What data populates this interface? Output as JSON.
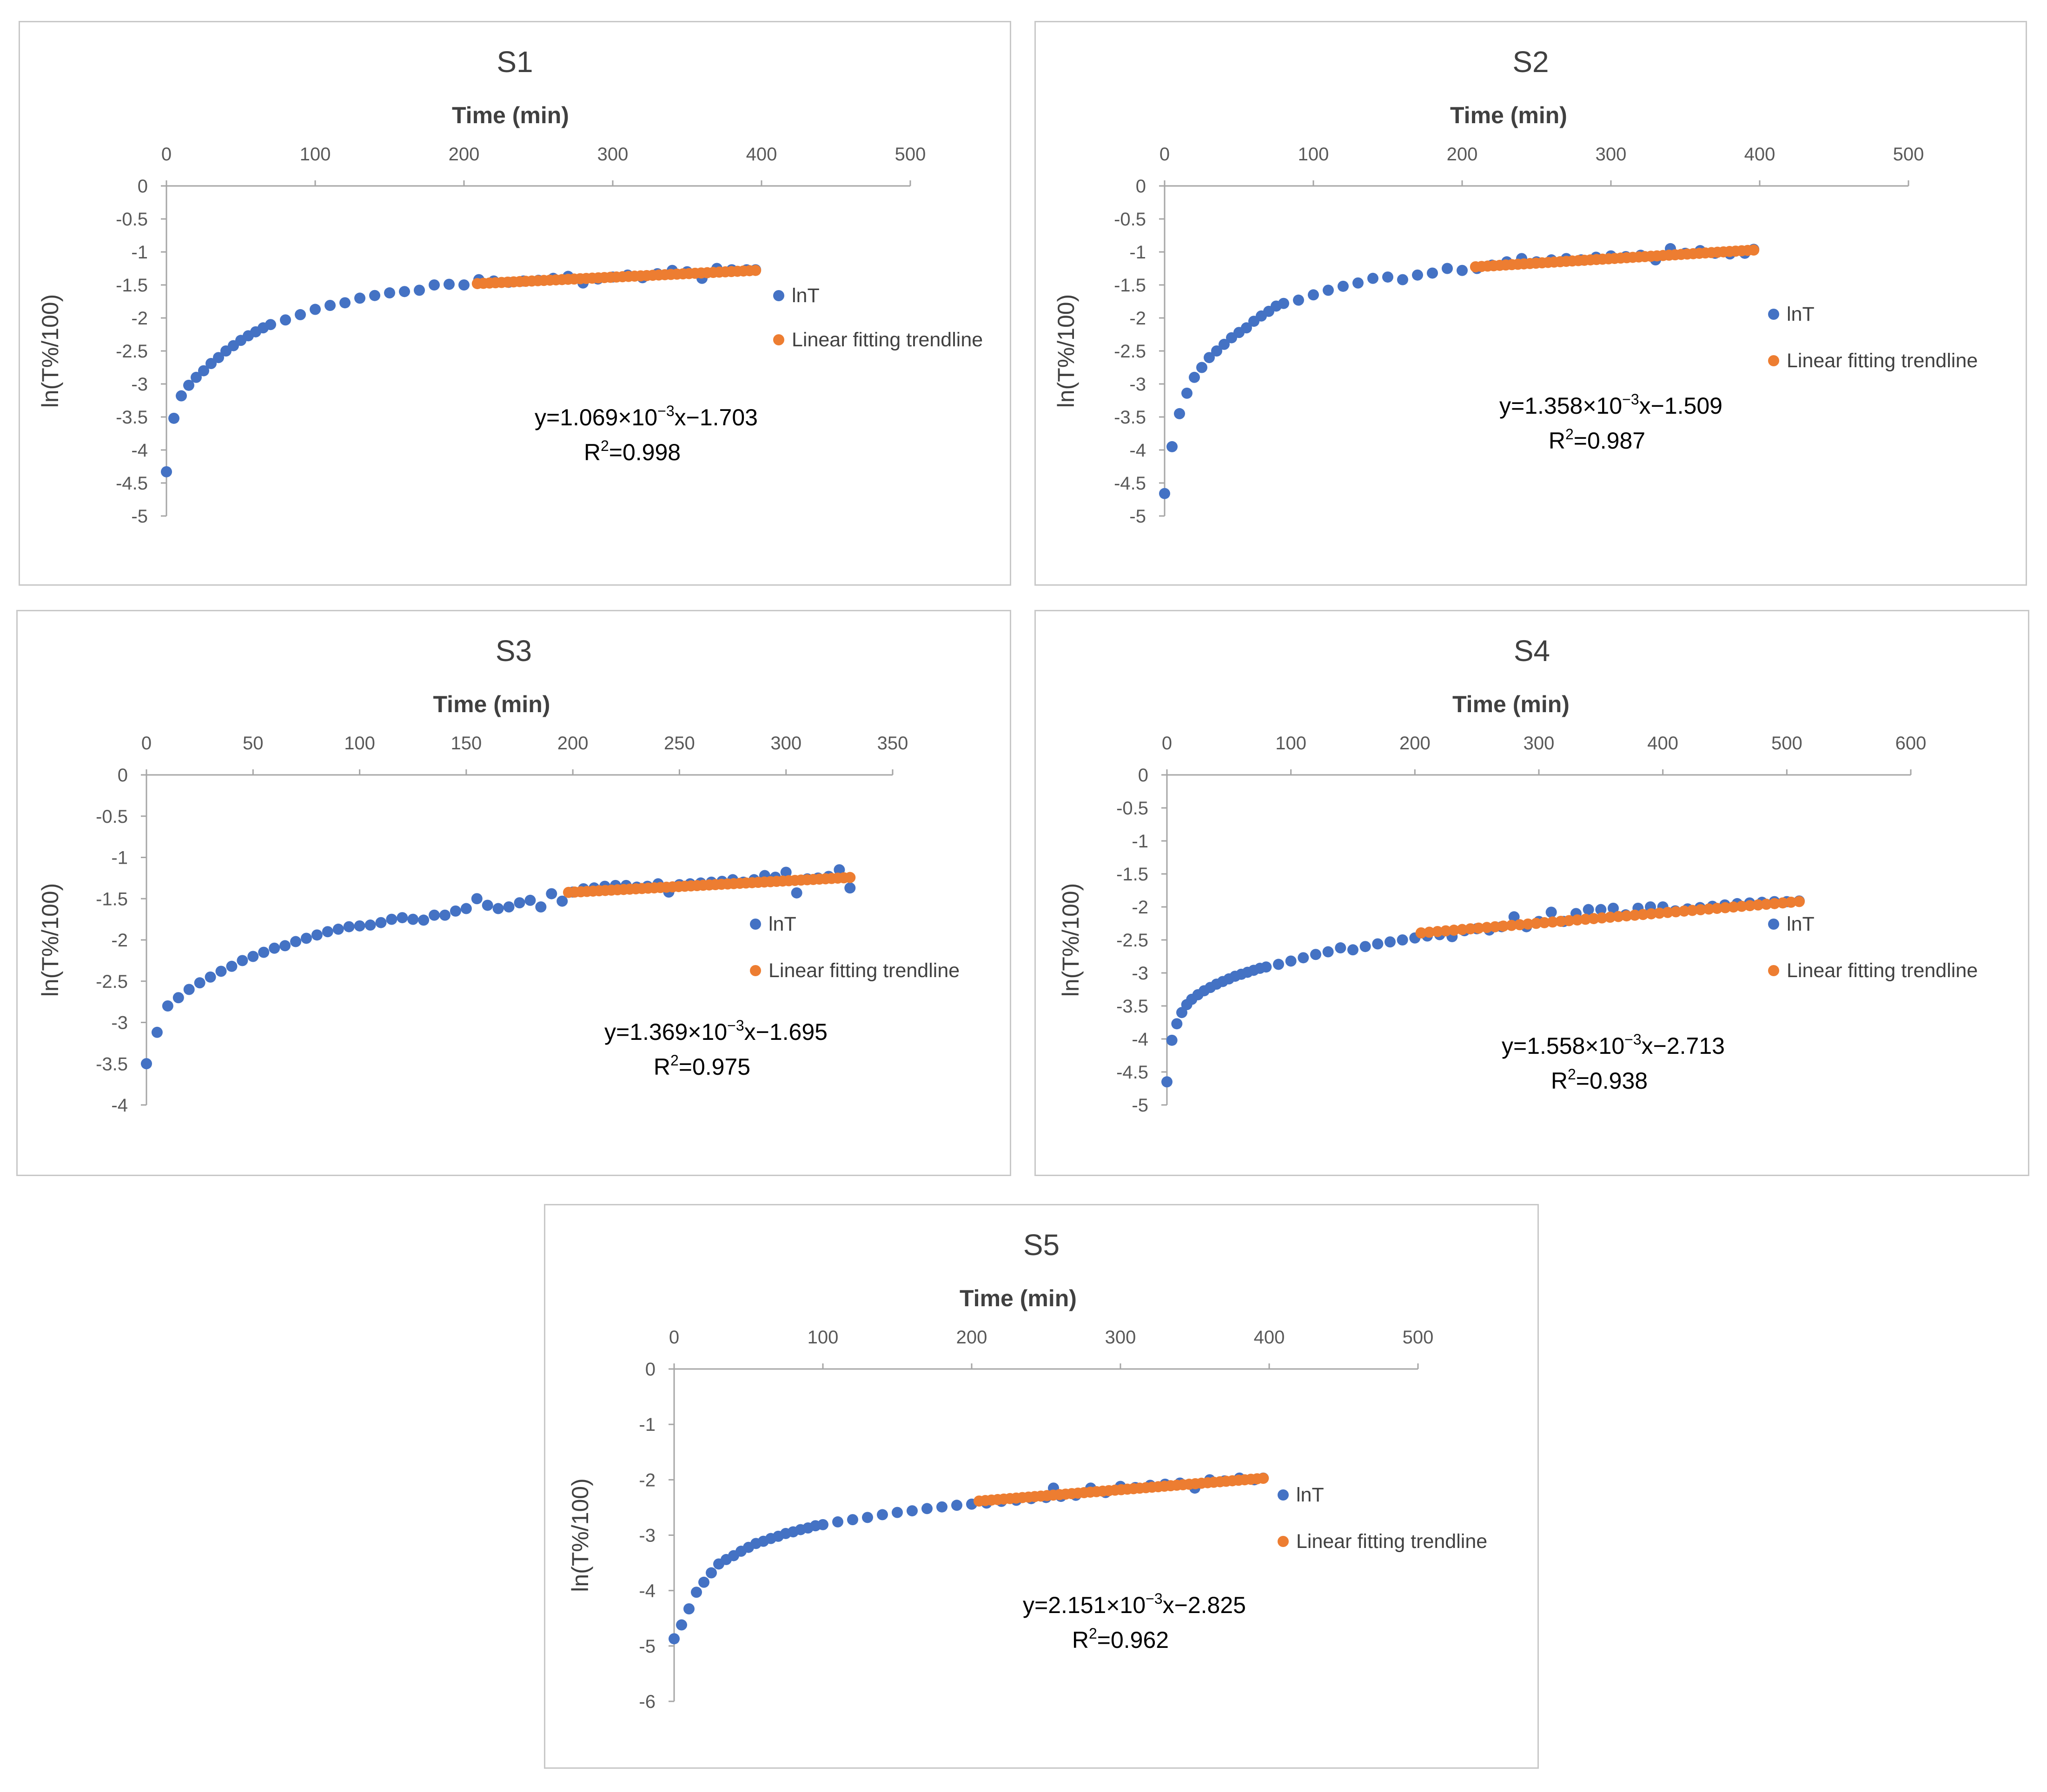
{
  "colors": {
    "lnT": "#4472C4",
    "trend": "#ED7D31"
  },
  "chart_data": [
    {
      "id": "s1",
      "type": "scatter",
      "title": "S1",
      "xlabel": "Time (min)",
      "ylabel": "ln(T%/100)",
      "xlim": [
        0,
        500
      ],
      "ylim": [
        -5,
        0
      ],
      "xticks": [
        "0",
        "100",
        "200",
        "300",
        "400",
        "500"
      ],
      "yticks": [
        "0",
        "-0.5",
        "-1",
        "-1.5",
        "-2",
        "-2.5",
        "-3",
        "-3.5",
        "-4",
        "-4.5",
        "-5"
      ],
      "legend": [
        "lnT",
        "Linear fitting trendline"
      ],
      "legend_position": "right",
      "equation": {
        "prefix": "y=1.069×10",
        "exp": "−3",
        "suffix": "x−1.703",
        "r2_prefix": "R",
        "r2_exp": "2",
        "r2_suffix": "=0.998"
      },
      "slope": 0.001069,
      "intercept": -1.703,
      "fit_start": 209,
      "fit_end": 396,
      "series": [
        {
          "name": "lnT",
          "x": [
            0,
            5,
            10,
            15,
            20,
            25,
            30,
            35,
            40,
            45,
            50,
            55,
            60,
            65,
            70,
            80,
            90,
            100,
            110,
            120,
            130,
            140,
            150,
            160,
            170,
            180,
            190,
            200,
            210,
            220,
            230,
            240,
            250,
            260,
            270,
            280,
            290,
            300,
            310,
            320,
            330,
            340,
            350,
            360,
            370,
            380,
            390,
            396
          ],
          "y": [
            -4.33,
            -3.52,
            -3.18,
            -3.02,
            -2.9,
            -2.8,
            -2.69,
            -2.6,
            -2.5,
            -2.42,
            -2.34,
            -2.27,
            -2.21,
            -2.15,
            -2.1,
            -2.03,
            -1.95,
            -1.87,
            -1.81,
            -1.77,
            -1.7,
            -1.66,
            -1.62,
            -1.6,
            -1.58,
            -1.5,
            -1.49,
            -1.5,
            -1.42,
            -1.44,
            -1.46,
            -1.44,
            -1.43,
            -1.4,
            -1.37,
            -1.47,
            -1.41,
            -1.38,
            -1.35,
            -1.39,
            -1.33,
            -1.28,
            -1.3,
            -1.4,
            -1.25,
            -1.27,
            -1.27,
            -1.27
          ]
        }
      ]
    },
    {
      "id": "s2",
      "type": "scatter",
      "title": "S2",
      "xlabel": "Time (min)",
      "ylabel": "ln(T%/100)",
      "xlim": [
        0,
        500
      ],
      "ylim": [
        -5,
        0
      ],
      "xticks": [
        "0",
        "100",
        "200",
        "300",
        "400",
        "500"
      ],
      "yticks": [
        "0",
        "-0.5",
        "-1",
        "-1.5",
        "-2",
        "-2.5",
        "-3",
        "-3.5",
        "-4",
        "-4.5",
        "-5"
      ],
      "legend": [
        "lnT",
        "Linear fitting trendline"
      ],
      "legend_position": "right",
      "equation": {
        "prefix": "y=1.358×10",
        "exp": "−3",
        "suffix": "x−1.509",
        "r2_prefix": "R",
        "r2_exp": "2",
        "r2_suffix": "=0.987"
      },
      "slope": 0.001358,
      "intercept": -1.509,
      "fit_start": 209,
      "fit_end": 396,
      "series": [
        {
          "name": "lnT",
          "x": [
            0,
            5,
            10,
            15,
            20,
            25,
            30,
            35,
            40,
            45,
            50,
            55,
            60,
            65,
            70,
            75,
            80,
            90,
            100,
            110,
            120,
            130,
            140,
            150,
            160,
            170,
            180,
            190,
            200,
            210,
            220,
            230,
            240,
            250,
            260,
            270,
            280,
            290,
            300,
            310,
            320,
            330,
            340,
            350,
            360,
            370,
            380,
            390,
            396
          ],
          "y": [
            -4.66,
            -3.95,
            -3.45,
            -3.14,
            -2.9,
            -2.75,
            -2.6,
            -2.5,
            -2.4,
            -2.3,
            -2.22,
            -2.15,
            -2.05,
            -1.97,
            -1.9,
            -1.82,
            -1.78,
            -1.73,
            -1.65,
            -1.58,
            -1.52,
            -1.47,
            -1.4,
            -1.38,
            -1.42,
            -1.35,
            -1.32,
            -1.25,
            -1.28,
            -1.25,
            -1.2,
            -1.15,
            -1.1,
            -1.15,
            -1.12,
            -1.1,
            -1.12,
            -1.08,
            -1.06,
            -1.07,
            -1.05,
            -1.12,
            -0.95,
            -1.02,
            -0.98,
            -1.02,
            -1.03,
            -1.02,
            -0.96
          ]
        }
      ]
    },
    {
      "id": "s3",
      "type": "scatter",
      "title": "S3",
      "xlabel": "Time (min)",
      "ylabel": "ln(T%/100)",
      "xlim": [
        0,
        350
      ],
      "ylim": [
        -4,
        0
      ],
      "xticks": [
        "0",
        "50",
        "100",
        "150",
        "200",
        "250",
        "300",
        "350"
      ],
      "yticks": [
        "0",
        "-0.5",
        "-1",
        "-1.5",
        "-2",
        "-2.5",
        "-3",
        "-3.5",
        "-4"
      ],
      "legend": [
        "lnT",
        "Linear fitting trendline"
      ],
      "legend_position": "right",
      "equation": {
        "prefix": "y=1.369×10",
        "exp": "−3",
        "suffix": "x−1.695",
        "r2_prefix": "R",
        "r2_exp": "2",
        "r2_suffix": "=0.975"
      },
      "slope": 0.001369,
      "intercept": -1.695,
      "fit_start": 198,
      "fit_end": 330,
      "series": [
        {
          "name": "lnT",
          "x": [
            0,
            5,
            10,
            15,
            20,
            25,
            30,
            35,
            40,
            45,
            50,
            55,
            60,
            65,
            70,
            75,
            80,
            85,
            90,
            95,
            100,
            105,
            110,
            115,
            120,
            125,
            130,
            135,
            140,
            145,
            150,
            155,
            160,
            165,
            170,
            175,
            180,
            185,
            190,
            195,
            200,
            205,
            210,
            215,
            220,
            225,
            230,
            235,
            240,
            245,
            250,
            255,
            260,
            265,
            270,
            275,
            280,
            285,
            290,
            295,
            300,
            305,
            310,
            315,
            320,
            325,
            330
          ],
          "y": [
            -3.5,
            -3.12,
            -2.8,
            -2.7,
            -2.6,
            -2.52,
            -2.45,
            -2.38,
            -2.32,
            -2.25,
            -2.2,
            -2.15,
            -2.1,
            -2.07,
            -2.02,
            -1.98,
            -1.94,
            -1.9,
            -1.87,
            -1.84,
            -1.83,
            -1.82,
            -1.79,
            -1.75,
            -1.73,
            -1.75,
            -1.76,
            -1.7,
            -1.7,
            -1.65,
            -1.62,
            -1.5,
            -1.58,
            -1.62,
            -1.6,
            -1.55,
            -1.52,
            -1.6,
            -1.44,
            -1.53,
            -1.42,
            -1.38,
            -1.37,
            -1.35,
            -1.34,
            -1.34,
            -1.36,
            -1.35,
            -1.32,
            -1.42,
            -1.33,
            -1.32,
            -1.31,
            -1.3,
            -1.29,
            -1.27,
            -1.3,
            -1.27,
            -1.22,
            -1.24,
            -1.18,
            -1.43,
            -1.26,
            -1.25,
            -1.23,
            -1.15,
            -1.37
          ]
        }
      ]
    },
    {
      "id": "s4",
      "type": "scatter",
      "title": "S4",
      "xlabel": "Time (min)",
      "ylabel": "ln(T%/100)",
      "xlim": [
        0,
        600
      ],
      "ylim": [
        -5,
        0
      ],
      "xticks": [
        "0",
        "100",
        "200",
        "300",
        "400",
        "500",
        "600"
      ],
      "yticks": [
        "0",
        "-0.5",
        "-1",
        "-1.5",
        "-2",
        "-2.5",
        "-3",
        "-3.5",
        "-4",
        "-4.5",
        "-5"
      ],
      "legend": [
        "lnT",
        "Linear fitting trendline"
      ],
      "legend_position": "right",
      "equation": {
        "prefix": "y=1.558×10",
        "exp": "−3",
        "suffix": "x−2.713",
        "r2_prefix": "R",
        "r2_exp": "2",
        "r2_suffix": "=0.938"
      },
      "slope": 0.001558,
      "intercept": -2.713,
      "fit_start": 205,
      "fit_end": 510,
      "series": [
        {
          "name": "lnT",
          "x": [
            0,
            4,
            8,
            12,
            16,
            20,
            25,
            30,
            35,
            40,
            45,
            50,
            55,
            60,
            65,
            70,
            75,
            80,
            90,
            100,
            110,
            120,
            130,
            140,
            150,
            160,
            170,
            180,
            190,
            200,
            210,
            220,
            230,
            240,
            250,
            260,
            270,
            280,
            290,
            300,
            310,
            320,
            330,
            340,
            350,
            360,
            370,
            380,
            390,
            400,
            410,
            420,
            430,
            440,
            450,
            460,
            470,
            480,
            490,
            500,
            510
          ],
          "y": [
            -4.65,
            -4.02,
            -3.77,
            -3.6,
            -3.48,
            -3.4,
            -3.33,
            -3.27,
            -3.22,
            -3.17,
            -3.13,
            -3.09,
            -3.05,
            -3.02,
            -2.99,
            -2.96,
            -2.93,
            -2.91,
            -2.87,
            -2.82,
            -2.77,
            -2.72,
            -2.68,
            -2.62,
            -2.65,
            -2.6,
            -2.56,
            -2.53,
            -2.5,
            -2.47,
            -2.44,
            -2.42,
            -2.45,
            -2.36,
            -2.33,
            -2.35,
            -2.3,
            -2.15,
            -2.3,
            -2.22,
            -2.08,
            -2.22,
            -2.1,
            -2.04,
            -2.04,
            -2.02,
            -2.12,
            -2.02,
            -2.0,
            -2.0,
            -2.06,
            -2.03,
            -2.01,
            -1.99,
            -1.97,
            -1.95,
            -1.94,
            -1.93,
            -1.92,
            -1.92,
            -1.91
          ]
        }
      ]
    },
    {
      "id": "s5",
      "type": "scatter",
      "title": "S5",
      "xlabel": "Time (min)",
      "ylabel": "ln(T%/100)",
      "xlim": [
        0,
        500
      ],
      "ylim": [
        -6,
        0
      ],
      "xticks": [
        "0",
        "100",
        "200",
        "300",
        "400",
        "500"
      ],
      "yticks": [
        "0",
        "-1",
        "-2",
        "-3",
        "-4",
        "-5",
        "-6"
      ],
      "legend": [
        "lnT",
        "Linear fitting trendline"
      ],
      "legend_position": "right",
      "equation": {
        "prefix": "y=2.151×10",
        "exp": "−3",
        "suffix": "x−2.825",
        "r2_prefix": "R",
        "r2_exp": "2",
        "r2_suffix": "=0.962"
      },
      "slope": 0.002151,
      "intercept": -2.825,
      "fit_start": 205,
      "fit_end": 396,
      "series": [
        {
          "name": "lnT",
          "x": [
            0,
            5,
            10,
            15,
            20,
            25,
            30,
            35,
            40,
            45,
            50,
            55,
            60,
            65,
            70,
            75,
            80,
            85,
            90,
            95,
            100,
            110,
            120,
            130,
            140,
            150,
            160,
            170,
            180,
            190,
            200,
            210,
            220,
            230,
            240,
            250,
            255,
            260,
            270,
            280,
            290,
            300,
            310,
            320,
            330,
            340,
            350,
            360,
            370,
            380,
            390,
            396
          ],
          "y": [
            -4.87,
            -4.62,
            -4.33,
            -4.03,
            -3.85,
            -3.68,
            -3.52,
            -3.44,
            -3.37,
            -3.29,
            -3.22,
            -3.15,
            -3.11,
            -3.06,
            -3.02,
            -2.97,
            -2.94,
            -2.9,
            -2.87,
            -2.83,
            -2.81,
            -2.76,
            -2.72,
            -2.68,
            -2.63,
            -2.59,
            -2.56,
            -2.52,
            -2.49,
            -2.46,
            -2.44,
            -2.42,
            -2.39,
            -2.37,
            -2.34,
            -2.32,
            -2.15,
            -2.3,
            -2.28,
            -2.15,
            -2.23,
            -2.12,
            -2.14,
            -2.1,
            -2.08,
            -2.06,
            -2.15,
            -2.0,
            -2.02,
            -1.97,
            -2.0,
            -1.97
          ]
        }
      ]
    }
  ]
}
